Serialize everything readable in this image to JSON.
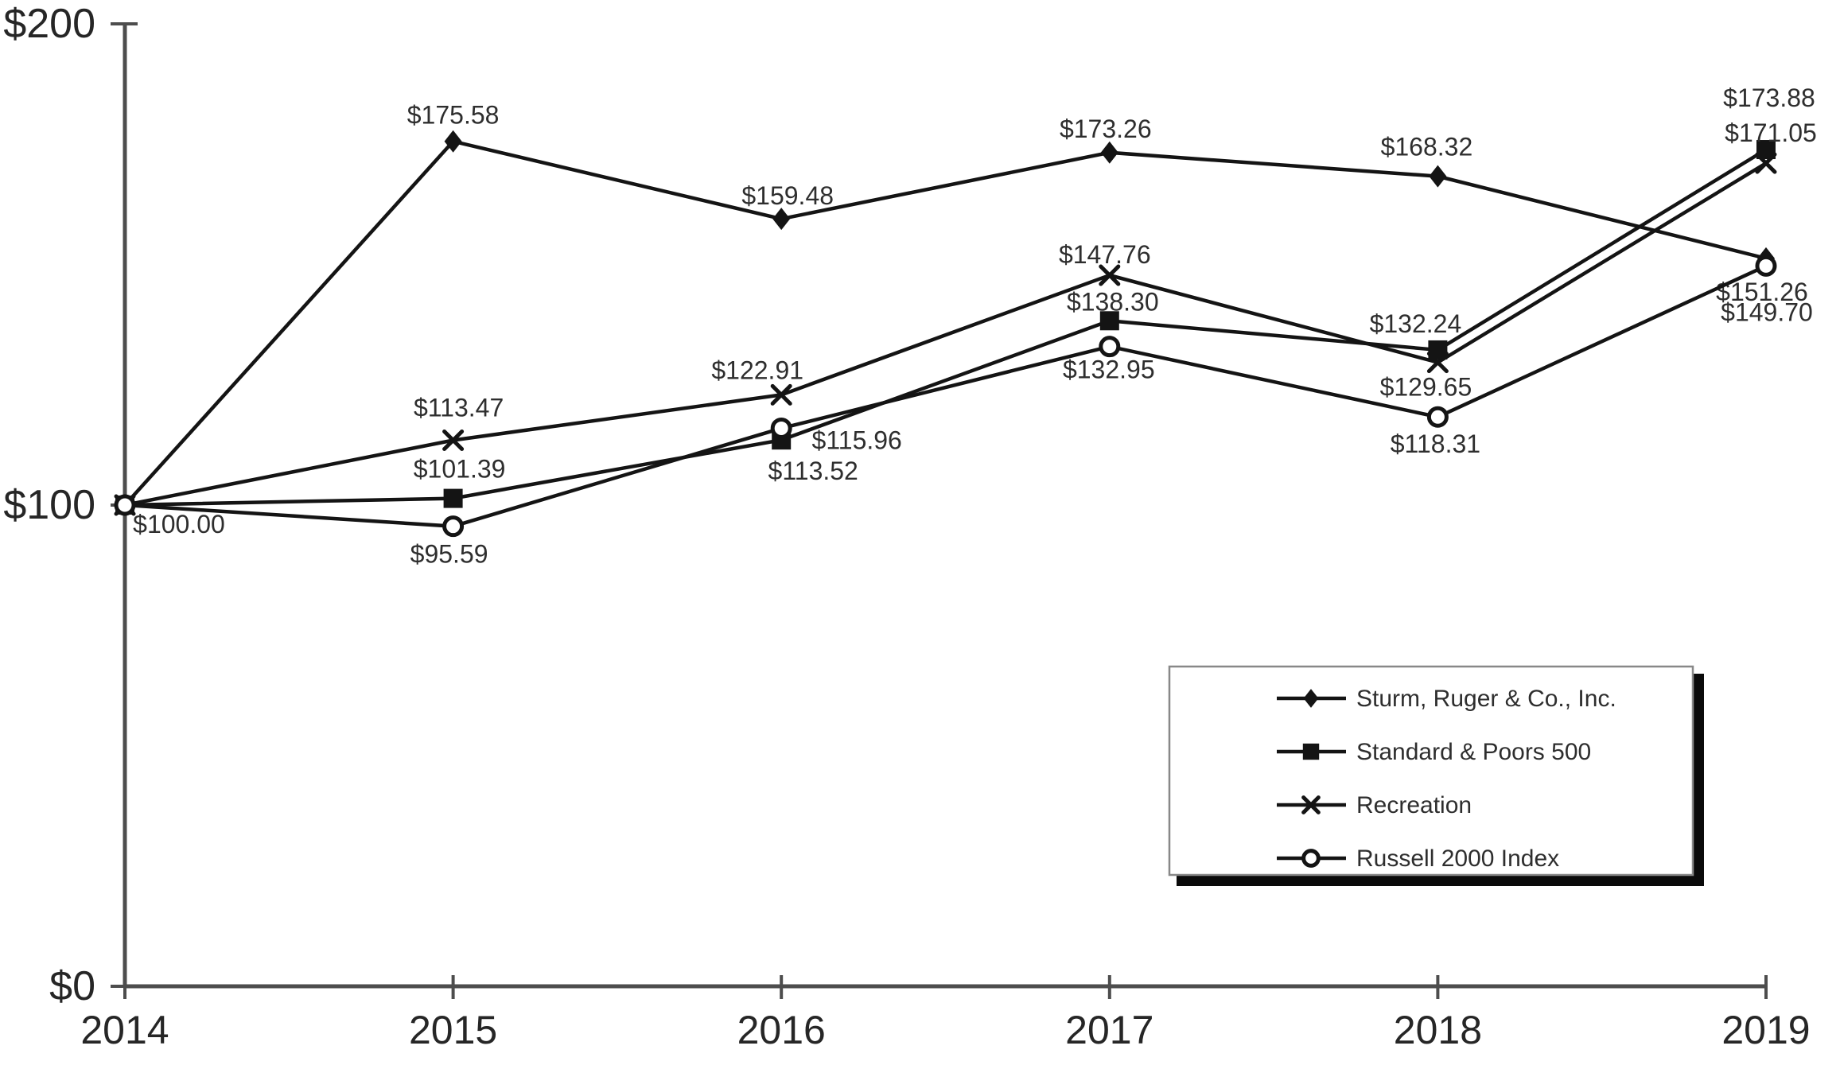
{
  "figure": {
    "background": "#ffffff",
    "series_line_color": "#141414",
    "axis_color": "#4d4d4d",
    "data_label_color": "#2e2e2e",
    "axis_label_color": "#262626",
    "legend_border_color": "#888888",
    "legend_shadow_color": "#0a0a0a"
  },
  "chart_data": {
    "type": "line",
    "title": "",
    "xlabel": "",
    "ylabel": "",
    "x_categories": [
      "2014",
      "2015",
      "2016",
      "2017",
      "2018",
      "2019"
    ],
    "y_axis": {
      "range": [
        0,
        200
      ],
      "ticks": [
        0,
        100,
        200
      ],
      "tick_labels": [
        "$0",
        "$100",
        "$200"
      ],
      "grid": false
    },
    "legend": {
      "position": "bottom-right",
      "entries": [
        "Sturm, Ruger & Co., Inc.",
        "Standard & Poors 500",
        "Recreation",
        "Russell 2000 Index"
      ]
    },
    "series": [
      {
        "name": "Sturm, Ruger & Co., Inc.",
        "marker": "diamond",
        "values": [
          100.0,
          175.58,
          159.48,
          173.26,
          168.32,
          151.26
        ],
        "point_labels": [
          null,
          {
            "text": "$175.58",
            "dx": 0,
            "dy": -33
          },
          {
            "text": "$159.48",
            "dx": 8,
            "dy": -29
          },
          {
            "text": "$173.26",
            "dx": -5,
            "dy": -30
          },
          {
            "text": "$168.32",
            "dx": -14,
            "dy": -37
          },
          {
            "text": "$151.26",
            "dx": -5,
            "dy": 42
          }
        ]
      },
      {
        "name": "Standard & Poors 500",
        "marker": "square",
        "values": [
          100.0,
          101.39,
          113.52,
          138.3,
          132.24,
          173.88
        ],
        "point_labels": [
          null,
          {
            "text": "$101.39",
            "dx": 8,
            "dy": -37
          },
          {
            "text": "$113.52",
            "dx": 40,
            "dy": 39
          },
          {
            "text": "$138.30",
            "dx": 4,
            "dy": -24
          },
          {
            "text": "$132.24",
            "dx": -28,
            "dy": -33
          },
          {
            "text": "$173.88",
            "dx": 4,
            "dy": -65
          }
        ]
      },
      {
        "name": "Recreation",
        "marker": "x",
        "values": [
          100.0,
          113.47,
          122.91,
          147.76,
          129.65,
          171.05
        ],
        "point_labels": [
          null,
          {
            "text": "$113.47",
            "dx": 7,
            "dy": -41
          },
          {
            "text": "$122.91",
            "dx": -30,
            "dy": -31
          },
          {
            "text": "$147.76",
            "dx": -6,
            "dy": -26
          },
          {
            "text": "$129.65",
            "dx": -15,
            "dy": 31
          },
          {
            "text": "$171.05",
            "dx": 6,
            "dy": -38
          }
        ]
      },
      {
        "name": "Russell 2000 Index",
        "marker": "circle",
        "values": [
          100.0,
          95.59,
          115.96,
          132.95,
          118.31,
          149.7
        ],
        "point_labels": [
          {
            "text": "$100.00",
            "dx": 68,
            "dy": 24
          },
          {
            "text": "$95.59",
            "dx": -5,
            "dy": 35
          },
          {
            "text": "$115.96",
            "dx": 95,
            "dy": 15
          },
          {
            "text": "$132.95",
            "dx": -1,
            "dy": 29
          },
          {
            "text": "$118.31",
            "dx": -3,
            "dy": 34
          },
          {
            "text": "$149.70",
            "dx": 1,
            "dy": 58
          }
        ]
      }
    ]
  }
}
